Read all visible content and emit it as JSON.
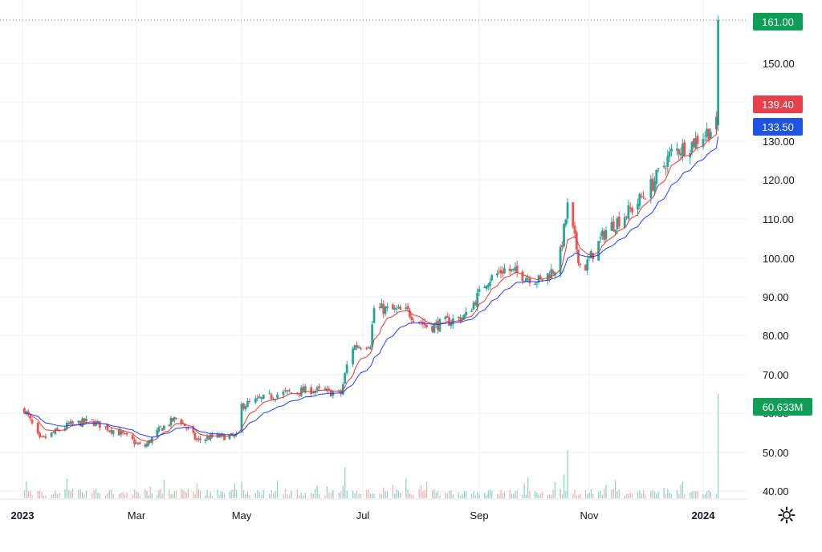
{
  "chart_data": {
    "type": "candlestick",
    "y_axis": {
      "ticks": [
        "150.00",
        "130.00",
        "120.00",
        "110.00",
        "100.00",
        "90.00",
        "80.00",
        "70.00",
        "60.00",
        "50.00",
        "40.00"
      ],
      "ylim": [
        38,
        163
      ]
    },
    "x_axis": {
      "labels": [
        "2023",
        "Mar",
        "May",
        "Jul",
        "Sep",
        "Nov",
        "2024"
      ]
    },
    "price_labels": {
      "last": "161.00",
      "ma_fast": "139.40",
      "ma_slow": "133.50",
      "volume": "60.633M"
    },
    "colors": {
      "up": "#26a69a",
      "down": "#ef5350",
      "ma_fast": "#e53935",
      "ma_slow": "#1e40ff",
      "last_label": "#0f9d58",
      "ma_fast_label": "#e5404b",
      "ma_slow_label": "#1e53e5",
      "volume_up": "#8fd6c8",
      "volume_down": "#f4b4b1"
    },
    "price_anchors": [
      [
        "2023-01-02",
        61
      ],
      [
        "2023-01-10",
        53
      ],
      [
        "2023-01-25",
        57
      ],
      [
        "2023-02-05",
        58
      ],
      [
        "2023-02-20",
        55
      ],
      [
        "2023-03-05",
        51
      ],
      [
        "2023-03-15",
        56
      ],
      [
        "2023-03-25",
        59
      ],
      [
        "2023-04-05",
        53
      ],
      [
        "2023-04-15",
        54
      ],
      [
        "2023-04-28",
        54
      ],
      [
        "2023-05-01",
        62
      ],
      [
        "2023-05-20",
        65
      ],
      [
        "2023-06-05",
        66
      ],
      [
        "2023-06-20",
        65
      ],
      [
        "2023-06-25",
        77
      ],
      [
        "2023-07-05",
        78
      ],
      [
        "2023-07-07",
        87
      ],
      [
        "2023-07-25",
        86
      ],
      [
        "2023-08-05",
        82
      ],
      [
        "2023-08-25",
        85
      ],
      [
        "2023-09-05",
        94
      ],
      [
        "2023-09-15",
        97
      ],
      [
        "2023-10-05",
        94
      ],
      [
        "2023-10-15",
        98
      ],
      [
        "2023-10-20",
        113
      ],
      [
        "2023-10-28",
        96
      ],
      [
        "2023-11-10",
        107
      ],
      [
        "2023-11-25",
        113
      ],
      [
        "2023-12-05",
        119
      ],
      [
        "2023-12-15",
        127
      ],
      [
        "2023-12-25",
        129
      ],
      [
        "2024-01-05",
        133
      ],
      [
        "2024-01-08",
        134
      ],
      [
        "2024-01-09",
        161
      ]
    ],
    "volume_spikes": [
      [
        "2023-05-01",
        10
      ],
      [
        "2023-06-22",
        18
      ],
      [
        "2023-07-02",
        25
      ],
      [
        "2023-10-20",
        28
      ],
      [
        "2023-10-18",
        14
      ],
      [
        "2023-11-05",
        12
      ],
      [
        "2023-12-20",
        8
      ],
      [
        "2024-01-09",
        60.633
      ]
    ]
  }
}
